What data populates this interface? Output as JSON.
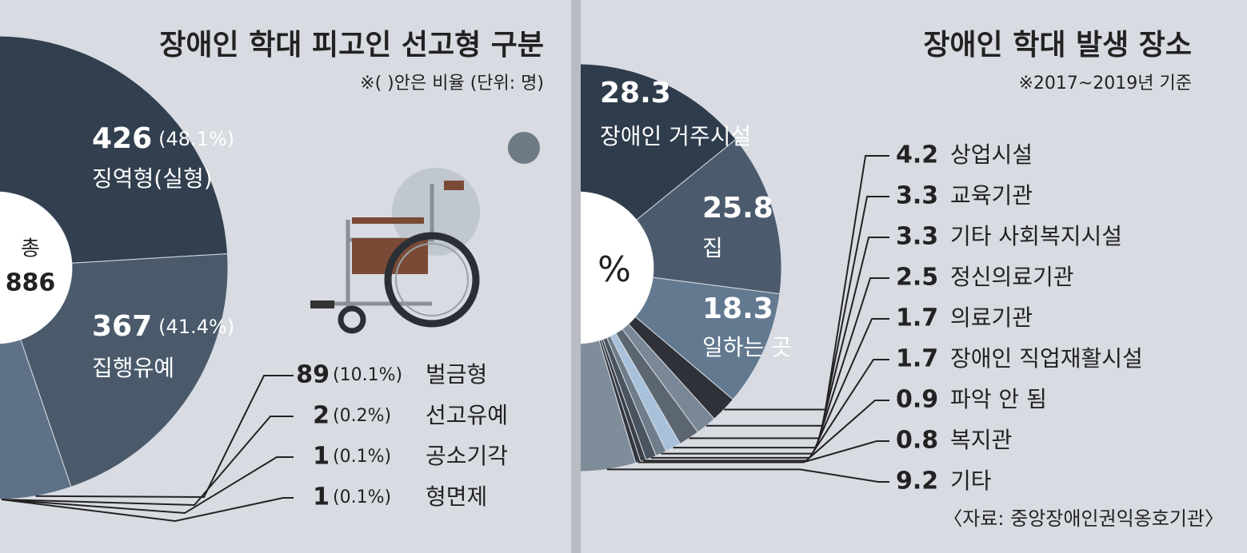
{
  "chart_data": [
    {
      "type": "pie",
      "title": "장애인 학대 피고인 선고형 구분",
      "subtitle": "※( )안은 비율 (단위: 명)",
      "total_label": "총",
      "total": 886,
      "categories": [
        "징역형(실형)",
        "집행유예",
        "벌금형",
        "선고유예",
        "공소기각",
        "형면제"
      ],
      "values": [
        426,
        367,
        89,
        2,
        1,
        1
      ],
      "share_labels": [
        "(48.1%)",
        "(41.4%)",
        "(10.1%)",
        "(0.2%)",
        "(0.1%)",
        "(0.1%)"
      ],
      "colors": [
        "#323f4e",
        "#4a5a6b",
        "#5e7187",
        "#2a2f36",
        "#1f2329",
        "#15181c"
      ]
    },
    {
      "type": "pie",
      "title": "장애인 학대 발생 장소",
      "subtitle": "※2017~2019년 기준",
      "center_label": "%",
      "categories": [
        "장애인 거주시설",
        "집",
        "일하는 곳",
        "상업시설",
        "교육기관",
        "기타 사회복지시설",
        "정신의료기관",
        "의료기관",
        "장애인 직업재활시설",
        "파악 안 됨",
        "복지관",
        "기타"
      ],
      "values": [
        28.3,
        25.8,
        18.3,
        4.2,
        3.3,
        3.3,
        2.5,
        1.7,
        1.7,
        0.9,
        0.8,
        9.2
      ],
      "colors": [
        "#2f3c4b",
        "#4b5b6d",
        "#627990",
        "#2e3238",
        "#7a8796",
        "#5c6670",
        "#a9c2dc",
        "#6f7d8a",
        "#4a5360",
        "#3a3f48",
        "#303540",
        "#7f8c9a"
      ],
      "source": "〈자료: 중앙장애인권익옹호기관〉"
    }
  ]
}
